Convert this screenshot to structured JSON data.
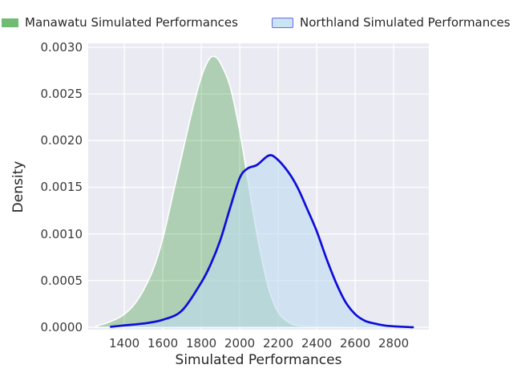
{
  "chart": {
    "legend": [
      {
        "label": "Manawatu Simulated Performances",
        "patch_fill": "#72BB72",
        "patch_border": "none"
      },
      {
        "label": "Northland Simulated Performances",
        "patch_fill": "#C9E4F3",
        "patch_border": "#6A6AE8"
      }
    ],
    "plot_bg_color": "#EAEAF2",
    "grid_color": "#FFFFFF"
  },
  "chart_data": {
    "type": "area",
    "subtype": "kde-density",
    "title": "",
    "xlabel": "Simulated Performances",
    "ylabel": "Density",
    "xticks": [
      1400,
      1600,
      1800,
      2000,
      2200,
      2400,
      2600,
      2800
    ],
    "yticks": [
      0,
      0.0005,
      0.001,
      0.0015,
      0.002,
      0.0025,
      0.003
    ],
    "ytick_labels": [
      "0.0000",
      "0.0005",
      "0.0010",
      "0.0015",
      "0.0020",
      "0.0025",
      "0.0030"
    ],
    "xlim": [
      1212,
      2983
    ],
    "ylim": [
      0,
      0.003045
    ],
    "grid": true,
    "legend_position": "top",
    "series": [
      {
        "name": "Manawatu Simulated Performances",
        "line_color": "#FFFFFF",
        "fill_color": "rgba(0,128,0,0.25)",
        "points": [
          [
            1250,
            1e-05
          ],
          [
            1300,
            4e-05
          ],
          [
            1350,
            8e-05
          ],
          [
            1400,
            0.00014
          ],
          [
            1450,
            0.00024
          ],
          [
            1500,
            0.0004
          ],
          [
            1550,
            0.00062
          ],
          [
            1600,
            0.00095
          ],
          [
            1650,
            0.0014
          ],
          [
            1700,
            0.00185
          ],
          [
            1750,
            0.0023
          ],
          [
            1800,
            0.00268
          ],
          [
            1840,
            0.00287
          ],
          [
            1870,
            0.0029
          ],
          [
            1900,
            0.00283
          ],
          [
            1950,
            0.00258
          ],
          [
            2000,
            0.0021
          ],
          [
            2050,
            0.00148
          ],
          [
            2100,
            0.00088
          ],
          [
            2150,
            0.00042
          ],
          [
            2200,
            0.00016
          ],
          [
            2250,
            6e-05
          ],
          [
            2300,
            2e-05
          ],
          [
            2400,
            1e-05
          ],
          [
            2500,
            5e-06
          ],
          [
            2600,
            0
          ]
        ]
      },
      {
        "name": "Northland Simulated Performances",
        "line_color": "#0D0DD8",
        "fill_color": "rgba(190,220,240,0.6)",
        "points": [
          [
            1330,
            5e-06
          ],
          [
            1400,
            2e-05
          ],
          [
            1500,
            4e-05
          ],
          [
            1600,
            8e-05
          ],
          [
            1700,
            0.00018
          ],
          [
            1800,
            0.00048
          ],
          [
            1850,
            0.00068
          ],
          [
            1900,
            0.00094
          ],
          [
            1950,
            0.00128
          ],
          [
            2000,
            0.0016
          ],
          [
            2040,
            0.0017
          ],
          [
            2090,
            0.00174
          ],
          [
            2150,
            0.00184
          ],
          [
            2190,
            0.00181
          ],
          [
            2250,
            0.00167
          ],
          [
            2300,
            0.0015
          ],
          [
            2350,
            0.00127
          ],
          [
            2400,
            0.00103
          ],
          [
            2450,
            0.00074
          ],
          [
            2500,
            0.00048
          ],
          [
            2550,
            0.00027
          ],
          [
            2600,
            0.00014
          ],
          [
            2650,
            7e-05
          ],
          [
            2700,
            4e-05
          ],
          [
            2750,
            2e-05
          ],
          [
            2800,
            1e-05
          ],
          [
            2900,
            0
          ]
        ]
      }
    ]
  }
}
